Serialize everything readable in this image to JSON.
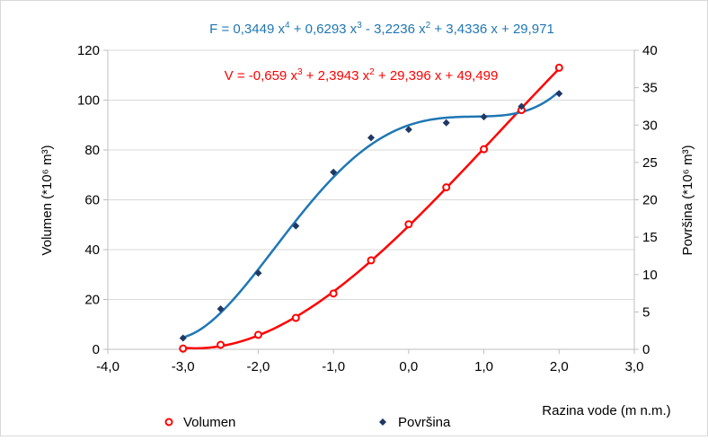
{
  "chart_data": {
    "type": "scatter",
    "xlabel": "Razina vode (m n.m.)",
    "ylabel_left": "Volumen (*10⁶ m³)",
    "ylabel_right": "Površina (*10⁶ m³)",
    "xlim": [
      -4,
      3
    ],
    "x_ticks": [
      "-4,0",
      "-3,0",
      "-2,0",
      "-1,0",
      "0,0",
      "1,0",
      "2,0",
      "3,0"
    ],
    "ylim_left": [
      0,
      120
    ],
    "y_ticks_left": [
      "0",
      "20",
      "40",
      "60",
      "80",
      "100",
      "120"
    ],
    "ylim_right": [
      0,
      40
    ],
    "y_ticks_right": [
      "0",
      "5",
      "10",
      "15",
      "20",
      "25",
      "30",
      "35",
      "40"
    ],
    "grid": "horizontal",
    "legend_position": "bottom",
    "annotations": {
      "area_fit": {
        "pre": "F = 0,3449 x",
        "sup1": "4",
        "mid1": " + 0,6293 x",
        "sup2": "3",
        "mid2": " - 3,2236 x",
        "sup3": "2",
        "post": " + 3,4336 x + 29,971"
      },
      "volume_fit": {
        "pre": "V = -0,659 x",
        "sup1": "3",
        "mid1": " + 2,3943 x",
        "sup2": "2",
        "post": " + 29,396 x + 49,499"
      }
    },
    "series": [
      {
        "name": "Volumen",
        "axis": "left",
        "color": "#ff0000",
        "marker": "circle",
        "x": [
          -3.0,
          -2.5,
          -2.0,
          -1.5,
          -1.0,
          -0.5,
          0.0,
          0.5,
          1.0,
          1.5,
          2.0
        ],
        "y": [
          0.3,
          1.8,
          5.8,
          12.6,
          22.4,
          35.7,
          50.2,
          65.0,
          80.3,
          96.0,
          113.0
        ],
        "trendline": {
          "type": "polynomial",
          "coefficients_desc": [
            -0.659,
            2.3943,
            29.396,
            49.499
          ]
        }
      },
      {
        "name": "Površina",
        "axis": "right",
        "color": "#1f3864",
        "marker": "diamond",
        "x": [
          -3.0,
          -2.5,
          -2.0,
          -1.5,
          -1.0,
          -0.5,
          0.0,
          0.5,
          1.0,
          1.5,
          2.0
        ],
        "y": [
          1.5,
          5.4,
          10.2,
          16.5,
          23.7,
          28.3,
          29.4,
          30.3,
          31.1,
          32.5,
          34.2
        ],
        "trendline": {
          "type": "polynomial",
          "coefficients_desc": [
            0.3449,
            0.6293,
            -3.2236,
            3.4336,
            29.971
          ]
        }
      }
    ],
    "colors": {
      "volume_fit": "#ff0000",
      "area_fit": "#1f77b4",
      "grid": "#d9d9d9",
      "axis": "#bfbfbf"
    }
  }
}
